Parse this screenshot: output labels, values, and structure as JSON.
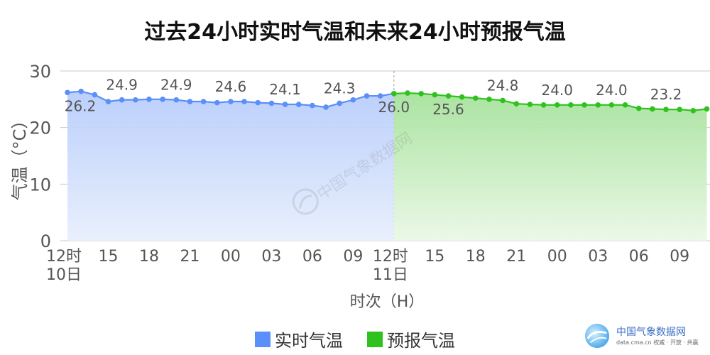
{
  "chart_data": {
    "type": "line",
    "title": "过去24小时实时气温和未来24小时预报气温",
    "ylabel": "气温（°C）",
    "xlabel": "时次（H）",
    "ylim": [
      0,
      30
    ],
    "yticks": [
      "0",
      "10",
      "20",
      "30"
    ],
    "xticks": [
      "12时\n10日",
      "15",
      "18",
      "21",
      "00",
      "03",
      "06",
      "09",
      "12时\n11日",
      "15",
      "18",
      "21",
      "00",
      "03",
      "06",
      "09"
    ],
    "grid": true,
    "legend_position": "bottom",
    "series": [
      {
        "name": "实时气温",
        "color": "#5b8ff9",
        "x": [
          0,
          1,
          2,
          3,
          4,
          5,
          6,
          7,
          8,
          9,
          10,
          11,
          12,
          13,
          14,
          15,
          16,
          17,
          18,
          19,
          20,
          21,
          22,
          23,
          24
        ],
        "values": [
          26.2,
          26.4,
          25.8,
          24.6,
          24.9,
          24.9,
          25.0,
          25.0,
          24.9,
          24.6,
          24.6,
          24.4,
          24.6,
          24.6,
          24.4,
          24.3,
          24.1,
          24.1,
          23.9,
          23.6,
          24.3,
          24.9,
          25.6,
          25.6,
          26.0
        ],
        "labels": [
          {
            "x": 0,
            "text": "26.2"
          },
          {
            "x": 4,
            "text": "24.9"
          },
          {
            "x": 8,
            "text": "24.9"
          },
          {
            "x": 12,
            "text": "24.6"
          },
          {
            "x": 16,
            "text": "24.1"
          },
          {
            "x": 20,
            "text": "24.3"
          },
          {
            "x": 24,
            "text": "26.0"
          }
        ]
      },
      {
        "name": "预报气温",
        "color": "#2fc21e",
        "x": [
          24,
          25,
          26,
          27,
          28,
          29,
          30,
          31,
          32,
          33,
          34,
          35,
          36,
          37,
          38,
          39,
          40,
          41,
          42,
          43,
          44,
          45,
          46,
          47
        ],
        "values": [
          26.0,
          26.1,
          26.0,
          25.8,
          25.6,
          25.4,
          25.2,
          25.0,
          24.8,
          24.2,
          24.1,
          24.0,
          24.0,
          24.0,
          24.0,
          24.0,
          24.0,
          24.0,
          23.4,
          23.3,
          23.2,
          23.2,
          23.0,
          23.3
        ],
        "labels": [
          {
            "x": 28,
            "text": "25.6"
          },
          {
            "x": 32,
            "text": "24.8"
          },
          {
            "x": 36,
            "text": "24.0"
          },
          {
            "x": 40,
            "text": "24.0"
          },
          {
            "x": 44,
            "text": "23.2"
          }
        ]
      }
    ]
  },
  "legend": [
    {
      "label": "实时气温",
      "color": "#5b8ff9"
    },
    {
      "label": "预报气温",
      "color": "#2fc21e"
    }
  ],
  "logo": {
    "name": "中国气象数据网",
    "subtitle": "data.cma.cn 权威 · 开放 · 共赢",
    "icon": "cma-data-logo-icon"
  },
  "watermark": {
    "text": "中国气象数据网",
    "icon": "cma-data-logo-icon"
  }
}
